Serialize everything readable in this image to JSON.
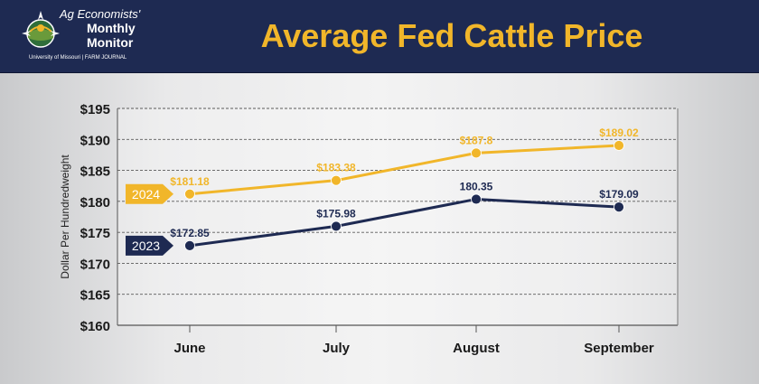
{
  "header": {
    "logo": {
      "line1": "Ag Economists'",
      "line2": "Monthly",
      "line3": "Monitor",
      "footer": "University of Missouri | FARM JOURNAL"
    },
    "title": "Average Fed Cattle Price"
  },
  "colors": {
    "header_bg": "#1e2a52",
    "title": "#f1b62a",
    "series_2024": "#f1b62a",
    "series_2023": "#1e2a52"
  },
  "chart_data": {
    "type": "line",
    "title": "Average Fed Cattle Price",
    "xlabel": "",
    "ylabel": "Dollar Per Hundredweight",
    "categories": [
      "June",
      "July",
      "August",
      "September"
    ],
    "ylim": [
      160,
      195
    ],
    "y_ticks": [
      160,
      165,
      170,
      175,
      180,
      185,
      190,
      195
    ],
    "y_tick_labels": [
      "$160",
      "$165",
      "$170",
      "$175",
      "$180",
      "$185",
      "$190",
      "$195"
    ],
    "grid": "horizontal dashed",
    "series": [
      {
        "name": "2024",
        "color": "#f1b62a",
        "values": [
          181.18,
          183.38,
          187.8,
          189.02
        ],
        "labels": [
          "$181.18",
          "$183.38",
          "$187.8",
          "$189.02"
        ]
      },
      {
        "name": "2023",
        "color": "#1e2a52",
        "values": [
          172.85,
          175.98,
          180.35,
          179.09
        ],
        "labels": [
          "$172.85",
          "$175.98",
          "180.35",
          "$179.09"
        ]
      }
    ]
  }
}
